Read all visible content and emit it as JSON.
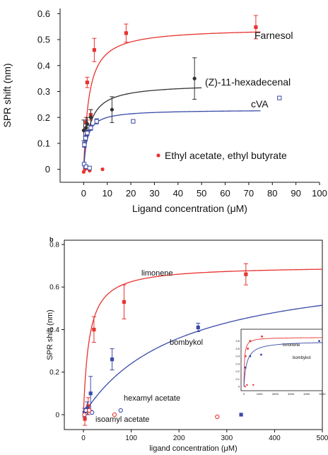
{
  "chart_data": [
    {
      "panel": "a",
      "type": "scatter",
      "xlabel": "Ligand concentration (μM)",
      "ylabel": "SPR shift (nm)",
      "xlim": [
        -10,
        100
      ],
      "ylim": [
        -0.05,
        0.62
      ],
      "xticks": [
        0,
        10,
        20,
        30,
        40,
        50,
        60,
        70,
        80,
        90,
        100
      ],
      "yticks": [
        0,
        0.1,
        0.2,
        0.3,
        0.4,
        0.5,
        0.6
      ],
      "series": [
        {
          "name": "Farnesol",
          "color": "#e8332f",
          "marker": "square",
          "fit": true,
          "points": [
            {
              "x": 1,
              "y": 0.18,
              "err": 0.02
            },
            {
              "x": 1.5,
              "y": 0.335,
              "err": 0.02
            },
            {
              "x": 3,
              "y": 0.21,
              "err": 0.02
            },
            {
              "x": 4.5,
              "y": 0.46,
              "err": 0.045
            },
            {
              "x": 18,
              "y": 0.525,
              "err": 0.035
            },
            {
              "x": 73,
              "y": 0.548,
              "err": 0.045
            }
          ]
        },
        {
          "name": "(Z)-11-hexadecenal",
          "color": "#333333",
          "marker": "circle",
          "fit": true,
          "points": [
            {
              "x": 0,
              "y": 0.15,
              "err": 0.04
            },
            {
              "x": 1,
              "y": 0.16,
              "err": 0.03
            },
            {
              "x": 1.5,
              "y": 0.175,
              "err": 0.025
            },
            {
              "x": 3,
              "y": 0.2,
              "err": 0.03
            },
            {
              "x": 12,
              "y": 0.23,
              "err": 0.05
            },
            {
              "x": 47,
              "y": 0.35,
              "err": 0.08
            }
          ]
        },
        {
          "name": "cVA",
          "color": "#3a4aa8",
          "marker": "hollow-square",
          "fit": true,
          "points": [
            {
              "x": 0.3,
              "y": 0.095,
              "err": 0.01
            },
            {
              "x": 0.8,
              "y": 0.12,
              "err": 0.01
            },
            {
              "x": 1.5,
              "y": 0.14,
              "err": 0.01
            },
            {
              "x": 3,
              "y": 0.16,
              "err": 0.01
            },
            {
              "x": 5.5,
              "y": 0.185,
              "err": 0.01
            },
            {
              "x": 21,
              "y": 0.185,
              "err": 0.005
            },
            {
              "x": 83,
              "y": 0.275,
              "err": 0.005
            }
          ]
        },
        {
          "name": "Ethyl acetate, ethyl butyrate",
          "color": "#e8332f",
          "marker": "circle",
          "fit": false,
          "points": [
            {
              "x": 0,
              "y": -0.01
            },
            {
              "x": 0.5,
              "y": 0.0
            },
            {
              "x": 1.5,
              "y": 0.005
            },
            {
              "x": 2.5,
              "y": -0.005
            },
            {
              "x": 8,
              "y": 0.0
            }
          ]
        },
        {
          "name": "Ethyl acetate, ethyl butyrate (blue)",
          "color": "#3a4aa8",
          "marker": "hollow-square",
          "fit": false,
          "points": [
            {
              "x": 0.2,
              "y": 0.02
            },
            {
              "x": 1,
              "y": 0.01
            },
            {
              "x": 2.5,
              "y": 0.005
            }
          ]
        }
      ],
      "fits": [
        {
          "series": "Farnesol",
          "color": "#e8332f",
          "bmax": 0.545,
          "kd": 2.2,
          "offset": 0.0,
          "xmax": 75
        },
        {
          "series": "(Z)-11-hexadecenal",
          "color": "#333333",
          "bmax": 0.33,
          "kd": 2.5,
          "offset": 0.0,
          "xmax": 50
        },
        {
          "series": "cVA",
          "color": "#3a4aa8",
          "bmax": 0.23,
          "kd": 1.5,
          "offset": 0.0,
          "xmax": 75
        }
      ],
      "labels": [
        {
          "text": "Farnesol",
          "color": "#111"
        },
        {
          "text": "(Z)-11-hexadecenal",
          "color": "#111"
        },
        {
          "text": "cVA",
          "color": "#111"
        },
        {
          "text": "Ethyl acetate, ethyl butyrate",
          "color": "#111"
        }
      ]
    },
    {
      "panel": "b",
      "panel_label": "b",
      "type": "scatter",
      "xlabel": "ligand concentration (μM)",
      "ylabel": "SPR shift (nm)",
      "xlim": [
        -40,
        500
      ],
      "ylim": [
        -0.07,
        0.82
      ],
      "xticks": [
        0,
        100,
        200,
        300,
        400,
        500
      ],
      "ytick_labels": [
        "0",
        "0.2",
        "0.4",
        "0.6",
        "0.8"
      ],
      "yticks": [
        0,
        0.2,
        0.4,
        0.6,
        0.8
      ],
      "series": [
        {
          "name": "limonene",
          "color": "#e8332f",
          "marker": "square",
          "fit": true,
          "points": [
            {
              "x": 3,
              "y": -0.02,
              "err": 0.03
            },
            {
              "x": 10,
              "y": 0.04,
              "err": 0.04
            },
            {
              "x": 22,
              "y": 0.4,
              "err": 0.06
            },
            {
              "x": 85,
              "y": 0.53,
              "err": 0.08
            },
            {
              "x": 340,
              "y": 0.66,
              "err": 0.05
            }
          ]
        },
        {
          "name": "bombykol",
          "color": "#3a4aa8",
          "marker": "square",
          "fit": true,
          "points": [
            {
              "x": 2,
              "y": 0.01,
              "err": 0.02
            },
            {
              "x": 8,
              "y": 0.03,
              "err": 0.03
            },
            {
              "x": 15,
              "y": 0.1,
              "err": 0.08
            },
            {
              "x": 60,
              "y": 0.26,
              "err": 0.05
            },
            {
              "x": 240,
              "y": 0.41,
              "err": 0.02
            },
            {
              "x": 330,
              "y": 0.0,
              "err": 0.0
            }
          ]
        },
        {
          "name": "hexamyl acetate",
          "color": "#3a4aa8",
          "marker": "hollow-circle",
          "fit": false,
          "points": [
            {
              "x": 5,
              "y": 0.02
            },
            {
              "x": 18,
              "y": 0.01
            },
            {
              "x": 78,
              "y": 0.02
            }
          ]
        },
        {
          "name": "isoamyl acetate",
          "color": "#e8332f",
          "marker": "hollow-circle",
          "fit": false,
          "points": [
            {
              "x": 2,
              "y": 0.0
            },
            {
              "x": 12,
              "y": 0.02
            },
            {
              "x": 65,
              "y": 0.0
            },
            {
              "x": 280,
              "y": -0.01
            }
          ]
        }
      ],
      "fits": [
        {
          "series": "limonene",
          "color": "#e8332f",
          "bmax": 0.7,
          "kd": 12,
          "offset": 0.0,
          "xmax": 500
        },
        {
          "series": "bombykol",
          "color": "#3a4aa8",
          "bmax": 0.72,
          "kd": 200,
          "offset": 0.0,
          "xmax": 500
        }
      ],
      "labels": [
        {
          "text": "limonene"
        },
        {
          "text": "bombykol"
        },
        {
          "text": "hexamyl acetate"
        },
        {
          "text": "isoamyl acetate"
        }
      ],
      "inset": {
        "labels": [
          "limonene",
          "bombykol"
        ],
        "xtick_labels": [
          "0",
          "1000",
          "2000",
          "3000",
          "4000",
          "5000"
        ],
        "ytick_labels": [
          "0",
          "0.1",
          "0.2",
          "0.3",
          "0.4",
          "0.5",
          "0.6"
        ]
      }
    }
  ]
}
